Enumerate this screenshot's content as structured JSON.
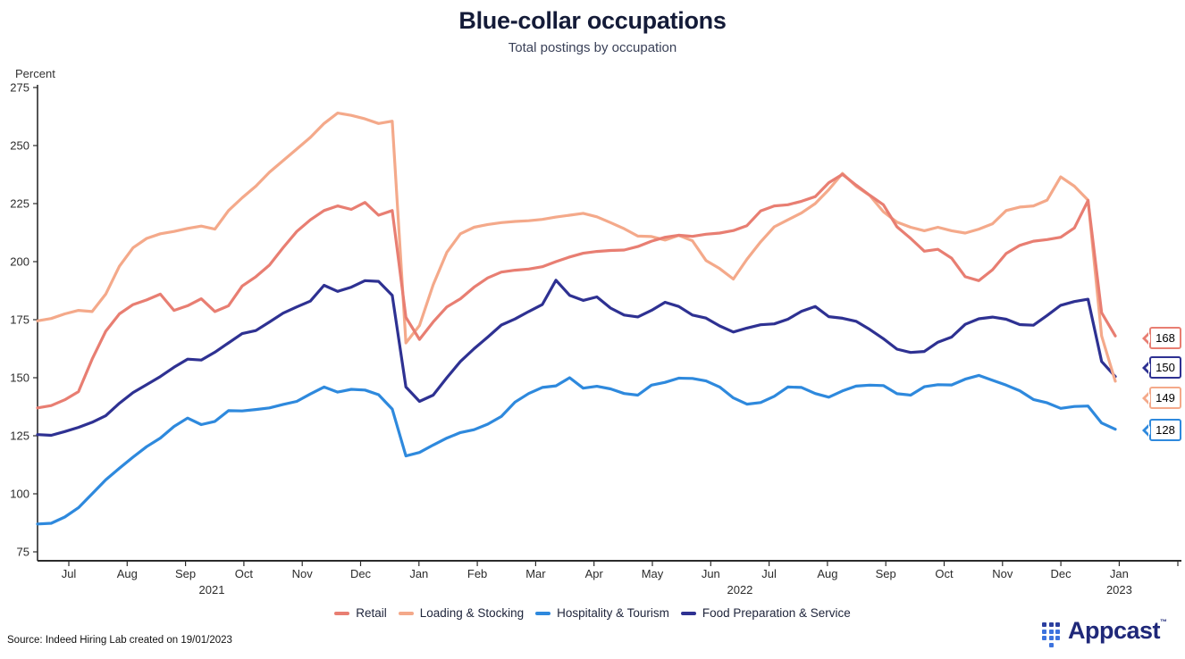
{
  "title": "Blue-collar occupations",
  "subtitle": "Total postings by occupation",
  "y_axis": {
    "label": "Percent",
    "ticks": [
      275,
      250,
      225,
      200,
      175,
      150,
      125,
      100,
      75
    ]
  },
  "x_axis": {
    "month_labels": [
      "Jul",
      "Aug",
      "Sep",
      "Oct",
      "Nov",
      "Dec",
      "Jan",
      "Feb",
      "Mar",
      "Apr",
      "May",
      "Jun",
      "Jul",
      "Aug",
      "Sep",
      "Oct",
      "Nov",
      "Dec",
      "Jan"
    ],
    "year_labels": [
      {
        "text": "2021",
        "anchor_month_index": 2.45
      },
      {
        "text": "2022",
        "anchor_month_index": 11.5
      },
      {
        "text": "2023",
        "anchor_month_index": 18
      }
    ]
  },
  "chart_data": {
    "type": "line",
    "title": "Blue-collar occupations",
    "subtitle": "Total postings by occupation",
    "ylabel": "Percent",
    "ylim": [
      75,
      275
    ],
    "x_range": "mid-Jun 2021 to early-Jan 2023, ~weekly samples",
    "grid": false,
    "legend_position": "bottom",
    "series": [
      {
        "name": "Retail",
        "color": "#e87e72",
        "end_value": 168,
        "values": [
          137,
          138,
          140.5,
          144,
          158,
          170,
          177.5,
          181.5,
          183.5,
          186,
          179,
          181,
          184,
          178.5,
          181,
          189.5,
          193.5,
          198.5,
          206,
          213,
          218,
          222,
          224,
          222.5,
          225.5,
          220,
          222,
          176,
          166.5,
          174,
          180.5,
          184,
          189,
          193,
          195.5,
          196.3,
          196.8,
          197.8,
          200,
          202,
          203.6,
          204.4,
          204.8,
          205,
          206.5,
          208.8,
          210.5,
          211.4,
          210.9,
          211.8,
          212.3,
          213.4,
          215.5,
          221.8,
          224,
          224.5,
          226,
          228,
          234,
          237.6,
          233,
          228.6,
          224.5,
          215,
          210,
          204.5,
          205.3,
          201.5,
          193.5,
          191.8,
          196.5,
          203.5,
          207,
          208.8,
          209.5,
          210.5,
          214.5,
          226.3,
          178,
          168
        ]
      },
      {
        "name": "Loading & Stocking",
        "color": "#f4a98a",
        "end_value": 149,
        "values": [
          174.5,
          175.5,
          177.5,
          179,
          178.5,
          186,
          198,
          206,
          210,
          212,
          213,
          214.3,
          215.3,
          214,
          222,
          227.5,
          232.5,
          238.5,
          243.5,
          248.5,
          253.5,
          259.5,
          264,
          263,
          261.5,
          259.5,
          260.5,
          165,
          172.5,
          190,
          204,
          212,
          214.8,
          216,
          216.8,
          217.3,
          217.6,
          218.2,
          219.2,
          220,
          220.8,
          219.3,
          216.8,
          214.2,
          211,
          210.8,
          209.3,
          211.3,
          209,
          200.5,
          197,
          192.5,
          201,
          208.5,
          215,
          218,
          221,
          225,
          231,
          238,
          232.5,
          228.5,
          221.5,
          217,
          214.8,
          213.3,
          214.8,
          213.3,
          212.3,
          214,
          216.3,
          222,
          223.5,
          224,
          226.5,
          236.5,
          232.5,
          226.5,
          168,
          148.5
        ]
      },
      {
        "name": "Hospitality & Tourism",
        "color": "#2e89dd",
        "end_value": 128,
        "values": [
          87,
          87.3,
          90,
          94,
          100,
          106,
          111,
          115.8,
          120.3,
          124,
          129,
          132.6,
          129.8,
          131.2,
          135.8,
          135.7,
          136.3,
          137,
          138.5,
          139.8,
          143,
          146,
          143.8,
          145,
          144.7,
          142.7,
          136.5,
          116.3,
          117.8,
          121,
          124,
          126.4,
          127.6,
          130,
          133.3,
          139.5,
          143.2,
          145.8,
          146.5,
          150,
          145.5,
          146.3,
          145.2,
          143.2,
          142.5,
          146.8,
          148,
          149.8,
          149.7,
          148.6,
          146,
          141.3,
          138.6,
          139.3,
          142,
          146,
          145.8,
          143.2,
          141.6,
          144.3,
          146.4,
          146.8,
          146.6,
          143.1,
          142.5,
          146.1,
          147,
          146.9,
          149.4,
          151,
          148.9,
          146.8,
          144.4,
          140.6,
          139.2,
          136.8,
          137.6,
          137.8,
          130.5,
          127.8
        ]
      },
      {
        "name": "Food Preparation & Service",
        "color": "#2e3192",
        "end_value": 150,
        "values": [
          125.5,
          125.2,
          126.8,
          128.6,
          130.8,
          133.6,
          139,
          143.6,
          147,
          150.5,
          154.5,
          158,
          157.6,
          161,
          165,
          169,
          170.3,
          174,
          177.8,
          180.5,
          183,
          189.8,
          187.2,
          189,
          191.8,
          191.5,
          185.5,
          146,
          139.8,
          142.5,
          150,
          157,
          162.5,
          167.5,
          172.7,
          175.3,
          178.5,
          181.5,
          192,
          185.5,
          183.3,
          184.8,
          180,
          177,
          176.2,
          179,
          182.5,
          180.7,
          177,
          175.7,
          172.3,
          169.7,
          171.4,
          172.8,
          173.2,
          175.2,
          178.6,
          180.7,
          176.3,
          175.6,
          174.3,
          170.8,
          166.8,
          162.3,
          160.9,
          161.3,
          165.3,
          167.5,
          173,
          175.4,
          176.1,
          175.2,
          172.9,
          172.6,
          176.8,
          181.2,
          182.8,
          183.8,
          157,
          150.5
        ]
      }
    ]
  },
  "legend": [
    {
      "label": "Retail",
      "color": "#e87e72"
    },
    {
      "label": "Loading & Stocking",
      "color": "#f4a98a"
    },
    {
      "label": "Hospitality & Tourism",
      "color": "#2e89dd"
    },
    {
      "label": "Food Preparation & Service",
      "color": "#2e3192"
    }
  ],
  "end_labels": [
    {
      "value": "168",
      "series": "Retail",
      "color": "#e87e72"
    },
    {
      "value": "150",
      "series": "Food Preparation & Service",
      "color": "#2e3192"
    },
    {
      "value": "149",
      "series": "Loading & Stocking",
      "color": "#f4a98a"
    },
    {
      "value": "128",
      "series": "Hospitality & Tourism",
      "color": "#2e89dd"
    }
  ],
  "source": "Source: Indeed Hiring Lab created on 19/01/2023",
  "logo": {
    "text": "Appcast",
    "tm": "™"
  }
}
